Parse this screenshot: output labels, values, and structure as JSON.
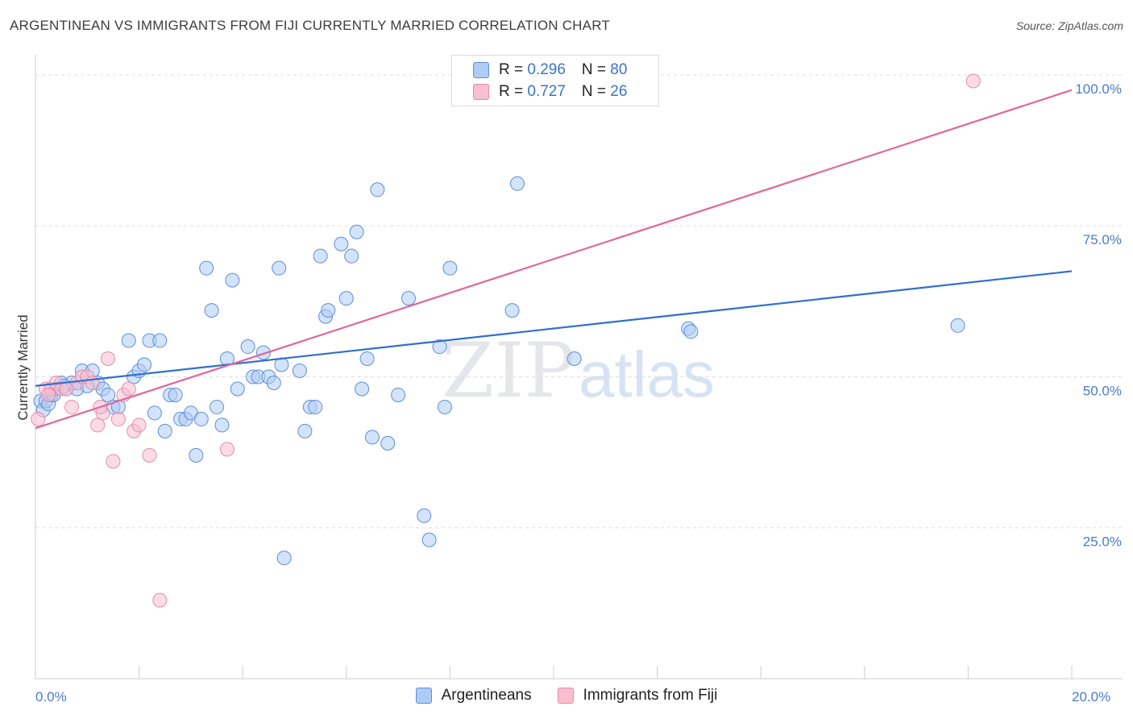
{
  "title": "ARGENTINEAN VS IMMIGRANTS FROM FIJI CURRENTLY MARRIED CORRELATION CHART",
  "source": "Source: ZipAtlas.com",
  "watermark": {
    "zip": "ZIP",
    "atlas": "atlas"
  },
  "legend": {
    "rows": [
      {
        "r_label": "R = ",
        "r_value": "0.296",
        "n_label": "N = ",
        "n_value": "80"
      },
      {
        "r_label": "R = ",
        "r_value": "0.727",
        "n_label": "N = ",
        "n_value": "26"
      }
    ]
  },
  "bottom_legend": {
    "series1": "Argentineans",
    "series2": "Immigrants from Fiji"
  },
  "colors": {
    "blue_fill": "#aeccf5",
    "blue_stroke": "#5b8fd6",
    "blue_line": "#2f6fd0",
    "pink_fill": "#f8bfd0",
    "pink_stroke": "#e58aa8",
    "pink_line": "#e0689a",
    "tick_color": "#4a7cc9",
    "grid": "#dddddd"
  },
  "chart_data": {
    "type": "scatter",
    "title": "ARGENTINEAN VS IMMIGRANTS FROM FIJI CURRENTLY MARRIED CORRELATION CHART",
    "xlabel": "",
    "ylabel": "Currently Married",
    "xlim": [
      0,
      20
    ],
    "ylim": [
      0,
      102
    ],
    "x_tick_labels": [
      "0.0%",
      "20.0%"
    ],
    "y_tick_labels": [
      "25.0%",
      "50.0%",
      "75.0%",
      "100.0%"
    ],
    "y_ticks": [
      25,
      50,
      75,
      100
    ],
    "series": [
      {
        "name": "Argentineans",
        "r": 0.296,
        "n": 80,
        "trend": {
          "x": [
            0,
            20
          ],
          "y": [
            48.5,
            67.5
          ]
        },
        "points": [
          [
            0.1,
            46
          ],
          [
            0.15,
            44.5
          ],
          [
            0.2,
            46
          ],
          [
            0.25,
            45.5
          ],
          [
            0.3,
            47
          ],
          [
            0.4,
            48
          ],
          [
            0.5,
            49
          ],
          [
            0.6,
            48
          ],
          [
            0.7,
            49
          ],
          [
            0.8,
            48
          ],
          [
            0.9,
            51
          ],
          [
            1.1,
            51
          ],
          [
            1.2,
            49
          ],
          [
            1.3,
            48
          ],
          [
            1.4,
            47
          ],
          [
            1.5,
            45
          ],
          [
            1.6,
            45
          ],
          [
            1.8,
            56
          ],
          [
            1.9,
            50
          ],
          [
            2.0,
            51
          ],
          [
            2.1,
            52
          ],
          [
            2.2,
            56
          ],
          [
            2.3,
            44
          ],
          [
            2.4,
            56
          ],
          [
            2.5,
            41
          ],
          [
            2.6,
            47
          ],
          [
            2.7,
            47
          ],
          [
            2.8,
            43
          ],
          [
            2.9,
            43
          ],
          [
            3.0,
            44
          ],
          [
            3.1,
            37
          ],
          [
            3.2,
            43
          ],
          [
            3.3,
            68
          ],
          [
            3.4,
            61
          ],
          [
            3.5,
            45
          ],
          [
            3.6,
            42
          ],
          [
            3.7,
            53
          ],
          [
            3.8,
            66
          ],
          [
            3.9,
            48
          ],
          [
            4.1,
            55
          ],
          [
            4.2,
            50
          ],
          [
            4.3,
            50
          ],
          [
            4.4,
            54
          ],
          [
            4.5,
            50
          ],
          [
            4.6,
            49
          ],
          [
            4.7,
            68
          ],
          [
            4.75,
            52
          ],
          [
            4.8,
            20
          ],
          [
            5.1,
            51
          ],
          [
            5.2,
            41
          ],
          [
            5.3,
            45
          ],
          [
            5.4,
            45
          ],
          [
            5.5,
            70
          ],
          [
            5.6,
            60
          ],
          [
            5.65,
            61
          ],
          [
            5.9,
            72
          ],
          [
            6.0,
            63
          ],
          [
            6.1,
            70
          ],
          [
            6.2,
            74
          ],
          [
            6.3,
            48
          ],
          [
            6.4,
            53
          ],
          [
            6.5,
            40
          ],
          [
            6.6,
            81
          ],
          [
            6.8,
            39
          ],
          [
            7.0,
            47
          ],
          [
            7.2,
            63
          ],
          [
            7.5,
            27
          ],
          [
            7.6,
            23
          ],
          [
            7.8,
            55
          ],
          [
            7.9,
            45
          ],
          [
            8.0,
            68
          ],
          [
            9.2,
            61
          ],
          [
            9.3,
            82
          ],
          [
            10.4,
            53
          ],
          [
            12.6,
            58
          ],
          [
            12.65,
            57.5
          ],
          [
            17.8,
            58.5
          ],
          [
            0.35,
            47
          ],
          [
            1.0,
            48.5
          ],
          [
            0.55,
            48.5
          ]
        ]
      },
      {
        "name": "Immigrants from Fiji",
        "r": 0.727,
        "n": 26,
        "trend": {
          "x": [
            0,
            20
          ],
          "y": [
            41.5,
            97.5
          ]
        },
        "points": [
          [
            0.05,
            43
          ],
          [
            0.2,
            48
          ],
          [
            0.3,
            48
          ],
          [
            0.4,
            49
          ],
          [
            0.5,
            48
          ],
          [
            0.7,
            45
          ],
          [
            0.8,
            49
          ],
          [
            0.9,
            50
          ],
          [
            1.0,
            50
          ],
          [
            1.1,
            49
          ],
          [
            1.2,
            42
          ],
          [
            1.3,
            44
          ],
          [
            1.4,
            53
          ],
          [
            1.5,
            36
          ],
          [
            1.6,
            43
          ],
          [
            1.7,
            47
          ],
          [
            1.8,
            48
          ],
          [
            1.9,
            41
          ],
          [
            2.0,
            42
          ],
          [
            2.2,
            37
          ],
          [
            2.4,
            13
          ],
          [
            3.7,
            38
          ],
          [
            18.1,
            99
          ],
          [
            0.6,
            48
          ],
          [
            1.25,
            45
          ],
          [
            0.25,
            47
          ]
        ]
      }
    ]
  }
}
